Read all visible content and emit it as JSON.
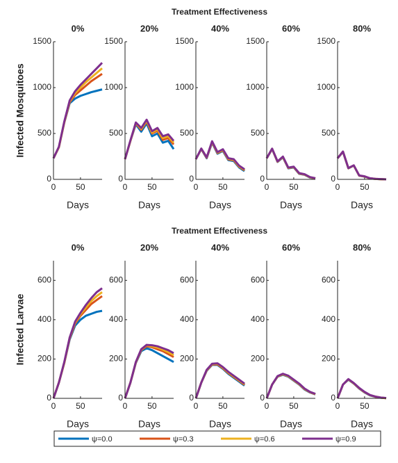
{
  "chart_data": {
    "type": "line",
    "x": [
      0,
      10,
      20,
      30,
      40,
      50,
      60,
      70,
      80,
      90
    ],
    "xlim": [
      0,
      90
    ],
    "xticks": [
      0,
      50
    ],
    "xlabel": "Days",
    "series": [
      {
        "name": "ψ=0.0",
        "color": "#0072bd"
      },
      {
        "name": "ψ=0.3",
        "color": "#d95319"
      },
      {
        "name": "ψ=0.6",
        "color": "#edb120"
      },
      {
        "name": "ψ=0.9",
        "color": "#7e2f8e"
      }
    ],
    "rows": [
      {
        "suptitle": "Treatment Effectiveness",
        "ylabel": "Infected Mosquitoes",
        "ylim": [
          0,
          1500
        ],
        "yticks": [
          0,
          500,
          1000,
          1500
        ],
        "panels": [
          {
            "title": "0%",
            "values": [
              [
                230,
                350,
                620,
                830,
                880,
                910,
                930,
                950,
                965,
                980
              ],
              [
                230,
                350,
                620,
                840,
                920,
                970,
                1020,
                1070,
                1110,
                1150
              ],
              [
                230,
                350,
                625,
                850,
                940,
                1000,
                1060,
                1110,
                1160,
                1210
              ],
              [
                230,
                355,
                630,
                860,
                960,
                1030,
                1090,
                1150,
                1210,
                1270
              ]
            ]
          },
          {
            "title": "20%",
            "values": [
              [
                220,
                420,
                600,
                520,
                610,
                470,
                500,
                400,
                420,
                330
              ],
              [
                220,
                420,
                610,
                540,
                630,
                500,
                530,
                430,
                450,
                380
              ],
              [
                220,
                420,
                615,
                550,
                640,
                510,
                545,
                450,
                470,
                400
              ],
              [
                220,
                425,
                620,
                560,
                650,
                525,
                560,
                470,
                490,
                420
              ]
            ]
          },
          {
            "title": "40%",
            "values": [
              [
                220,
                330,
                230,
                400,
                280,
                310,
                210,
                200,
                130,
                90
              ],
              [
                220,
                332,
                235,
                405,
                287,
                317,
                218,
                208,
                138,
                98
              ],
              [
                220,
                334,
                238,
                410,
                292,
                322,
                224,
                214,
                144,
                104
              ],
              [
                220,
                336,
                240,
                415,
                297,
                328,
                230,
                220,
                150,
                110
              ]
            ]
          },
          {
            "title": "60%",
            "values": [
              [
                230,
                330,
                190,
                240,
                120,
                130,
                60,
                50,
                20,
                10
              ],
              [
                230,
                332,
                192,
                243,
                123,
                133,
                63,
                52,
                22,
                11
              ],
              [
                230,
                333,
                194,
                245,
                125,
                135,
                65,
                54,
                23,
                12
              ],
              [
                230,
                335,
                196,
                248,
                128,
                138,
                68,
                56,
                25,
                13
              ]
            ]
          },
          {
            "title": "80%",
            "values": [
              [
                230,
                300,
                120,
                150,
                40,
                30,
                10,
                5,
                2,
                0
              ],
              [
                230,
                301,
                121,
                151,
                41,
                31,
                11,
                5,
                2,
                0
              ],
              [
                230,
                302,
                122,
                152,
                42,
                32,
                11,
                6,
                2,
                0
              ],
              [
                230,
                303,
                123,
                153,
                43,
                33,
                12,
                6,
                3,
                0
              ]
            ]
          }
        ]
      },
      {
        "suptitle": "Treatment Effectiveness",
        "ylabel": "Infected Larvae",
        "ylim": [
          0,
          700
        ],
        "yticks": [
          0,
          200,
          400,
          600
        ],
        "panels": [
          {
            "title": "0%",
            "values": [
              [
                0,
                80,
                180,
                300,
                370,
                400,
                420,
                430,
                440,
                445
              ],
              [
                0,
                80,
                180,
                305,
                380,
                420,
                450,
                480,
                500,
                520
              ],
              [
                0,
                80,
                182,
                308,
                385,
                428,
                462,
                495,
                520,
                540
              ],
              [
                0,
                80,
                185,
                310,
                390,
                435,
                475,
                510,
                540,
                560
              ]
            ]
          },
          {
            "title": "20%",
            "values": [
              [
                0,
                80,
                180,
                240,
                255,
                245,
                230,
                215,
                200,
                185
              ],
              [
                0,
                80,
                182,
                245,
                265,
                260,
                250,
                240,
                225,
                210
              ],
              [
                0,
                80,
                183,
                248,
                270,
                265,
                258,
                248,
                235,
                220
              ],
              [
                0,
                80,
                185,
                250,
                272,
                270,
                265,
                255,
                245,
                230
              ]
            ]
          },
          {
            "title": "40%",
            "values": [
              [
                0,
                80,
                140,
                170,
                170,
                150,
                125,
                105,
                85,
                65
              ],
              [
                0,
                80,
                142,
                172,
                173,
                153,
                129,
                109,
                89,
                69
              ],
              [
                0,
                80,
                143,
                174,
                176,
                156,
                132,
                112,
                92,
                72
              ],
              [
                0,
                80,
                145,
                176,
                178,
                159,
                135,
                115,
                95,
                75
              ]
            ]
          },
          {
            "title": "60%",
            "values": [
              [
                0,
                70,
                110,
                120,
                110,
                90,
                70,
                45,
                30,
                20
              ],
              [
                0,
                70,
                111,
                122,
                112,
                92,
                72,
                47,
                31,
                21
              ],
              [
                0,
                70,
                112,
                123,
                113,
                93,
                73,
                48,
                32,
                22
              ],
              [
                0,
                70,
                113,
                125,
                115,
                95,
                75,
                50,
                33,
                23
              ]
            ]
          },
          {
            "title": "80%",
            "values": [
              [
                0,
                70,
                95,
                75,
                50,
                30,
                15,
                8,
                3,
                1
              ],
              [
                0,
                70,
                96,
                76,
                51,
                31,
                16,
                8,
                3,
                1
              ],
              [
                0,
                70,
                97,
                77,
                52,
                32,
                16,
                9,
                4,
                1
              ],
              [
                0,
                70,
                98,
                78,
                53,
                33,
                17,
                9,
                4,
                2
              ]
            ]
          }
        ]
      }
    ]
  }
}
